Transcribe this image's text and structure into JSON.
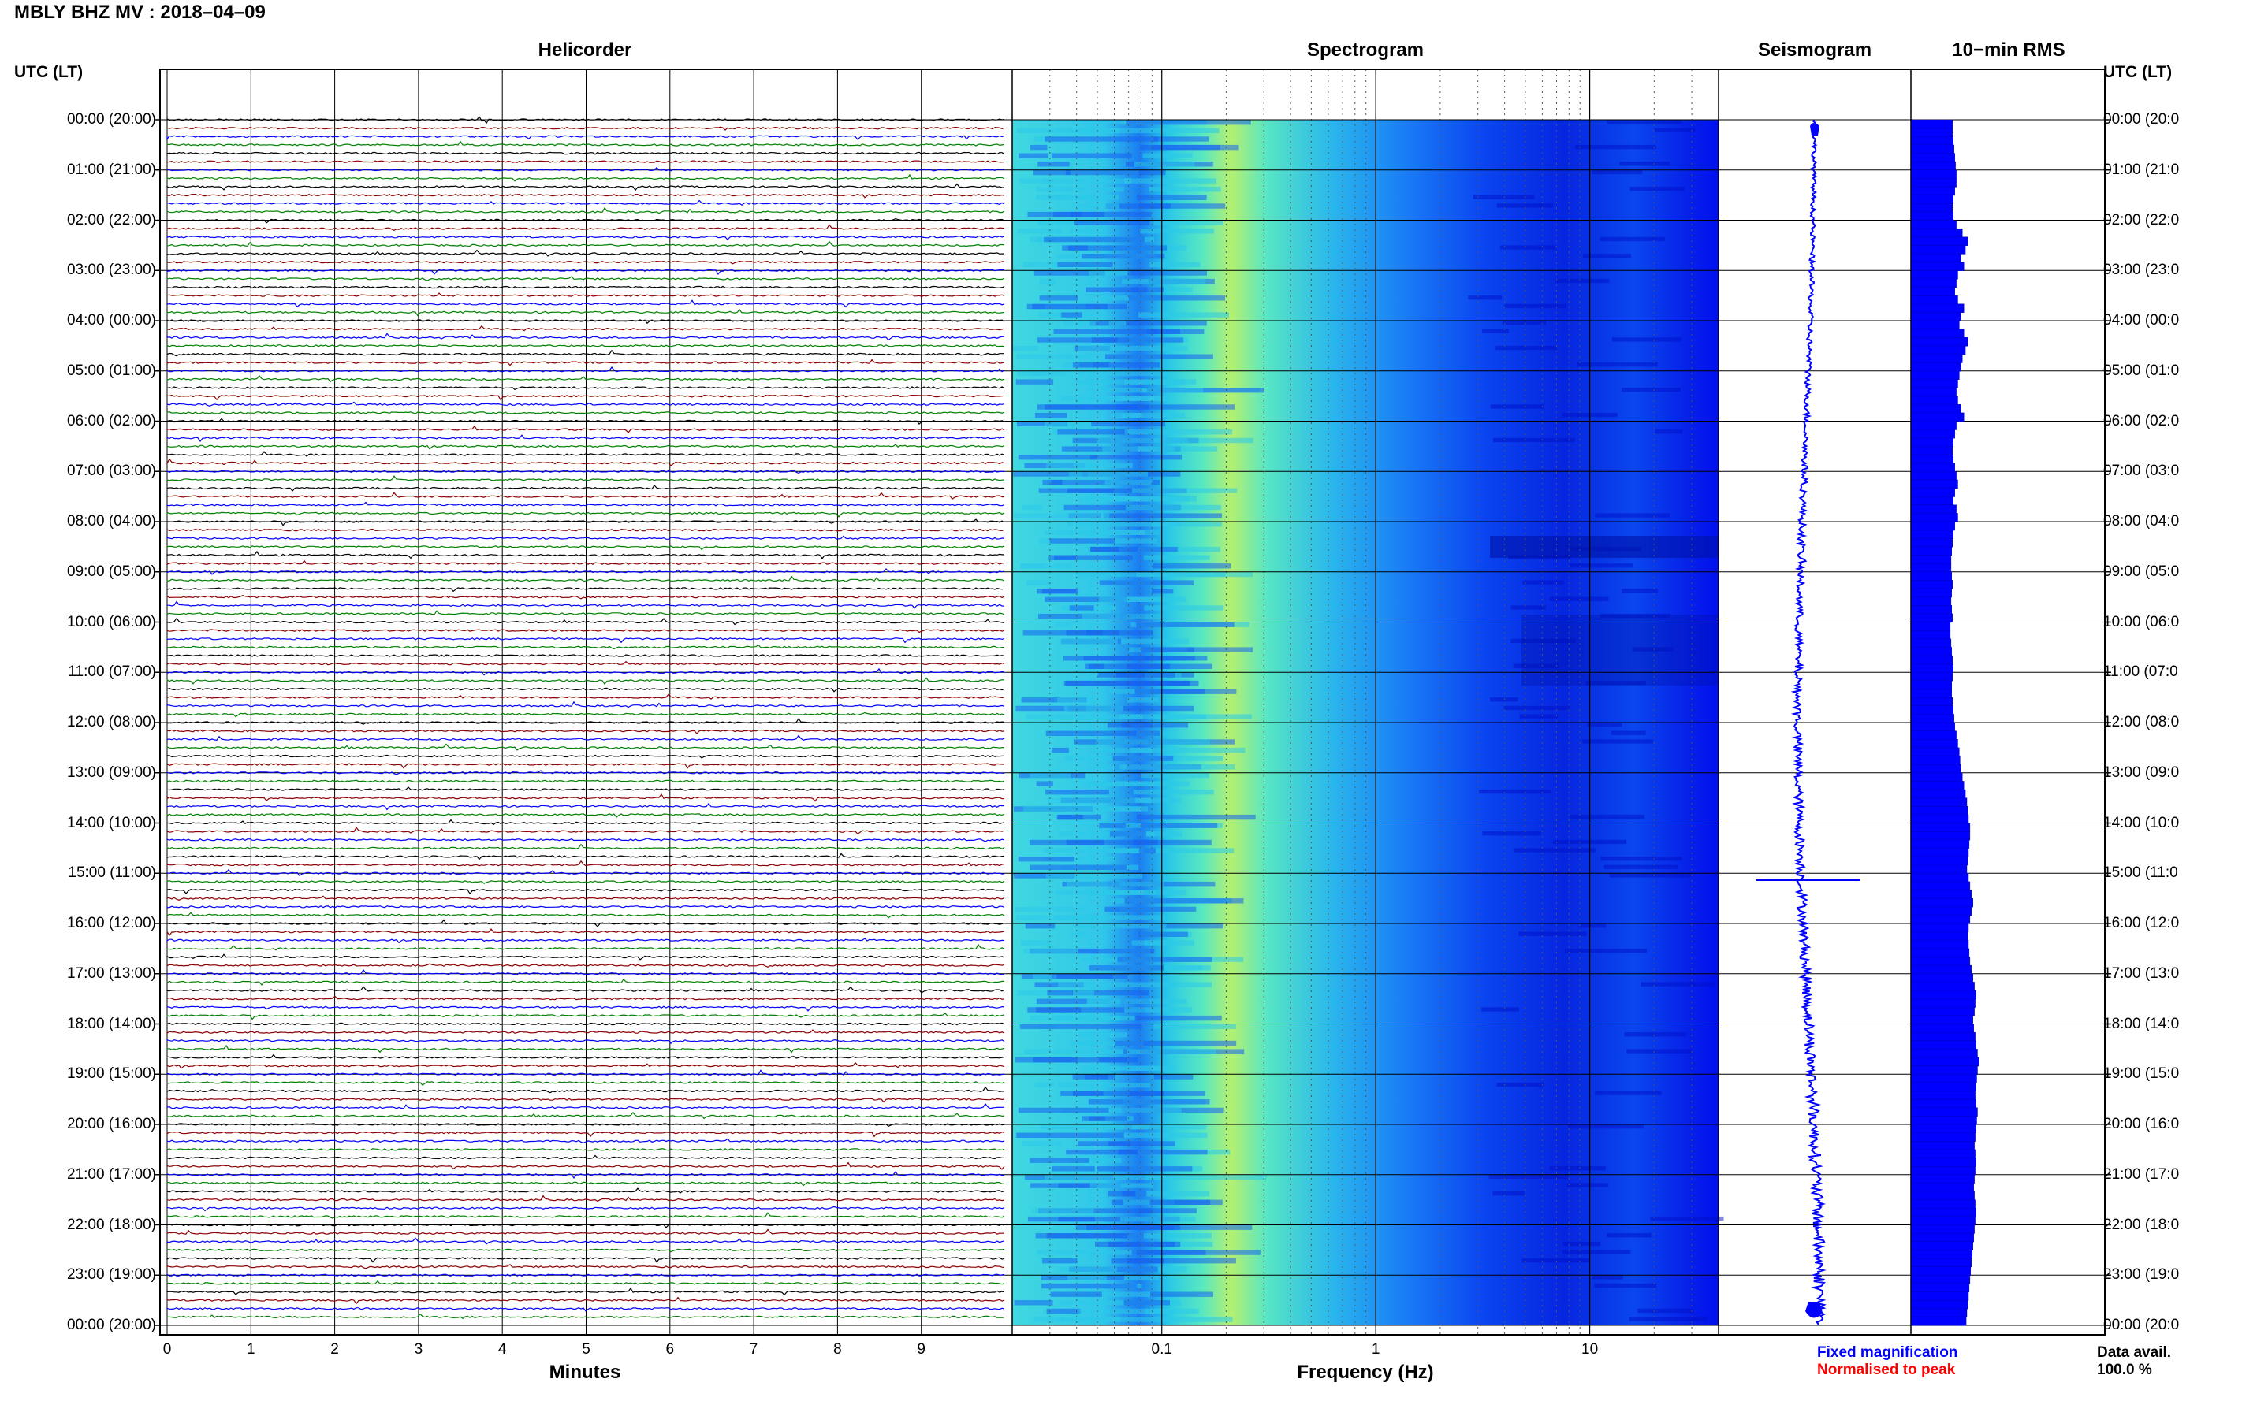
{
  "header": {
    "station": "MBLY BHZ MV",
    "date": "2018–04–09"
  },
  "panels": {
    "helicorder": "Helicorder",
    "spectrogram": "Spectrogram",
    "seismogram": "Seismogram",
    "rms": "10−min RMS"
  },
  "utc_header": "UTC (LT)",
  "time_labels": [
    "00:00 (20:00)",
    "01:00 (21:00)",
    "02:00 (22:00)",
    "03:00 (23:00)",
    "04:00 (00:00)",
    "05:00 (01:00)",
    "06:00 (02:00)",
    "07:00 (03:00)",
    "08:00 (04:00)",
    "09:00 (05:00)",
    "10:00 (06:00)",
    "11:00 (07:00)",
    "12:00 (08:00)",
    "13:00 (09:00)",
    "14:00 (10:00)",
    "15:00 (11:00)",
    "16:00 (12:00)",
    "17:00 (13:00)",
    "18:00 (14:00)",
    "19:00 (15:00)",
    "20:00 (16:00)",
    "21:00 (17:00)",
    "22:00 (18:00)",
    "23:00 (19:00)",
    "00:00 (20:00)"
  ],
  "right_time_labels": [
    "00:00 (20:0",
    "01:00 (21:0",
    "02:00 (22:0",
    "03:00 (23:0",
    "04:00 (00:0",
    "05:00 (01:0",
    "06:00 (02:0",
    "07:00 (03:0",
    "08:00 (04:0",
    "09:00 (05:0",
    "10:00 (06:0",
    "11:00 (07:0",
    "12:00 (08:0",
    "13:00 (09:0",
    "14:00 (10:0",
    "15:00 (11:0",
    "16:00 (12:0",
    "17:00 (13:0",
    "18:00 (14:0",
    "19:00 (15:0",
    "20:00 (16:0",
    "21:00 (17:0",
    "22:00 (18:0",
    "23:00 (19:0",
    "00:00 (20:0"
  ],
  "minutes_axis": {
    "label": "Minutes",
    "ticks": [
      "0",
      "1",
      "2",
      "3",
      "4",
      "5",
      "6",
      "7",
      "8",
      "9"
    ]
  },
  "frequency_axis": {
    "label": "Frequency (Hz)",
    "ticks": [
      "0.1",
      "1",
      "10"
    ],
    "scale": "log"
  },
  "legend": {
    "fixed": "Fixed magnification",
    "normalised": "Normalised to peak",
    "fixed_color": "#0000ff",
    "normalised_color": "#ff0000"
  },
  "data_availability": {
    "label": "Data avail.",
    "value": "100.0 %"
  },
  "colors": {
    "trace_cycle": [
      "#000000",
      "#8b0000",
      "#0000ff",
      "#008000"
    ],
    "seismogram": "#0000ff",
    "rms_fill": "#0000ff",
    "spectrogram_low": "#0000ff",
    "spectrogram_mid": "#00ffff",
    "spectrogram_high": "#ffff00"
  },
  "chart_data": [
    {
      "type": "line",
      "name": "Helicorder",
      "xlabel": "Minutes",
      "xlim": [
        0,
        10
      ],
      "x_ticks": [
        0,
        1,
        2,
        3,
        4,
        5,
        6,
        7,
        8,
        9
      ],
      "rows": 144,
      "row_minutes": 10,
      "y_ticks": [
        "00:00",
        "01:00",
        "02:00",
        "03:00",
        "04:00",
        "05:00",
        "06:00",
        "07:00",
        "08:00",
        "09:00",
        "10:00",
        "11:00",
        "12:00",
        "13:00",
        "14:00",
        "15:00",
        "16:00",
        "17:00",
        "18:00",
        "19:00",
        "20:00",
        "21:00",
        "22:00",
        "23:00",
        "00:00"
      ]
    },
    {
      "type": "heatmap",
      "name": "Spectrogram",
      "xlabel": "Frequency (Hz)",
      "xscale": "log",
      "xlim": [
        0.02,
        40
      ],
      "x_ticks": [
        0.1,
        1,
        10
      ],
      "peak_band_hz": [
        0.2,
        0.35
      ]
    },
    {
      "type": "line",
      "name": "Seismogram",
      "notable_event_utc": "15:00"
    },
    {
      "type": "bar",
      "name": "10-min RMS",
      "orientation": "horizontal",
      "bins": 144,
      "relative_values": [
        0.55,
        0.55,
        0.56,
        0.57,
        0.58,
        0.59,
        0.6,
        0.6,
        0.58,
        0.56,
        0.55,
        0.56,
        0.6,
        0.68,
        0.75,
        0.72,
        0.66,
        0.7,
        0.62,
        0.6,
        0.58,
        0.62,
        0.7,
        0.66,
        0.64,
        0.7,
        0.75,
        0.72,
        0.68,
        0.66,
        0.64,
        0.62,
        0.6,
        0.62,
        0.66,
        0.7,
        0.6,
        0.58,
        0.56,
        0.55,
        0.56,
        0.58,
        0.6,
        0.62,
        0.58,
        0.56,
        0.6,
        0.62,
        0.58,
        0.56,
        0.55,
        0.54,
        0.53,
        0.53,
        0.54,
        0.55,
        0.54,
        0.53,
        0.54,
        0.55,
        0.52,
        0.52,
        0.53,
        0.54,
        0.55,
        0.56,
        0.55,
        0.54,
        0.54,
        0.55,
        0.56,
        0.57,
        0.58,
        0.6,
        0.62,
        0.64,
        0.65,
        0.66,
        0.68,
        0.7,
        0.72,
        0.74,
        0.75,
        0.76,
        0.78,
        0.78,
        0.77,
        0.76,
        0.75,
        0.74,
        0.76,
        0.78,
        0.8,
        0.82,
        0.8,
        0.78,
        0.76,
        0.75,
        0.76,
        0.77,
        0.78,
        0.8,
        0.82,
        0.84,
        0.86,
        0.85,
        0.84,
        0.82,
        0.83,
        0.85,
        0.86,
        0.88,
        0.9,
        0.88,
        0.87,
        0.86,
        0.85,
        0.86,
        0.88,
        0.87,
        0.86,
        0.85,
        0.84,
        0.85,
        0.86,
        0.85,
        0.84,
        0.83,
        0.84,
        0.85,
        0.86,
        0.85,
        0.84,
        0.83,
        0.82,
        0.81,
        0.8,
        0.79,
        0.78,
        0.77,
        0.76,
        0.75,
        0.74,
        0.73
      ]
    }
  ]
}
